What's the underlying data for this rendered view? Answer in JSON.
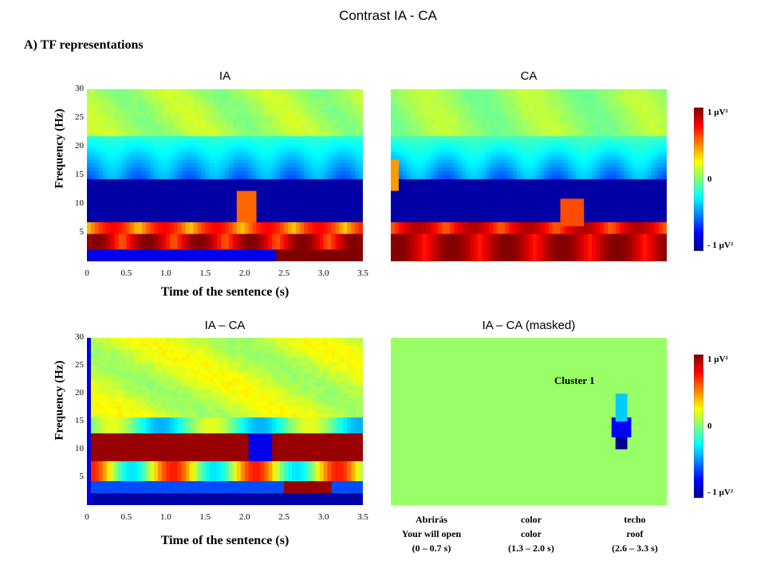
{
  "title": "Contrast IA - CA",
  "section_title": "A) TF representations",
  "panels": {
    "ia": {
      "title": "IA"
    },
    "ca": {
      "title": "CA"
    },
    "diff": {
      "title": "IA – CA"
    },
    "masked": {
      "title": "IA – CA (masked)",
      "cluster_label": "Cluster 1"
    }
  },
  "axes": {
    "ylabel": "Frequency (Hz)",
    "xlabel": "Time of the sentence (s)",
    "yticks": [
      "30",
      "25",
      "20",
      "15",
      "10",
      "5"
    ],
    "xticks": [
      "0",
      "0.5",
      "1.0",
      "1.5",
      "2.0",
      "2.5",
      "3.0",
      "3.5"
    ]
  },
  "colorbar": {
    "max_label": "1 µV²",
    "mid_label": "0",
    "min_label": "- 1 µV²"
  },
  "words": [
    {
      "spanish": "Abrirás",
      "english": "Your will open",
      "range": "(0 – 0.7 s)"
    },
    {
      "spanish": "color",
      "english": "color",
      "range": "(1.3 – 2.0 s)"
    },
    {
      "spanish": "techo",
      "english": "roof",
      "range": "(2.6 – 3.3 s)"
    }
  ],
  "chart_data": [
    {
      "type": "heatmap",
      "title": "IA",
      "xlabel": "Time of the sentence (s)",
      "ylabel": "Frequency (Hz)",
      "xlim": [
        0,
        3.5
      ],
      "ylim": [
        0,
        30
      ],
      "color_range": [
        -1,
        1
      ],
      "units": "µV²"
    },
    {
      "type": "heatmap",
      "title": "CA",
      "xlabel": "",
      "ylabel": "",
      "xlim": [
        0,
        3.5
      ],
      "ylim": [
        0,
        30
      ],
      "color_range": [
        -1,
        1
      ],
      "units": "µV²"
    },
    {
      "type": "heatmap",
      "title": "IA – CA",
      "xlabel": "Time of the sentence (s)",
      "ylabel": "Frequency (Hz)",
      "xlim": [
        0,
        3.5
      ],
      "ylim": [
        0,
        30
      ],
      "color_range": [
        -1,
        1
      ],
      "units": "µV²"
    },
    {
      "type": "heatmap",
      "title": "IA – CA (masked)",
      "xlabel": "",
      "ylabel": "",
      "xlim": [
        0,
        3.5
      ],
      "ylim": [
        0,
        30
      ],
      "color_range": [
        -1,
        1
      ],
      "units": "µV²",
      "annotations": [
        "Cluster 1"
      ]
    }
  ]
}
